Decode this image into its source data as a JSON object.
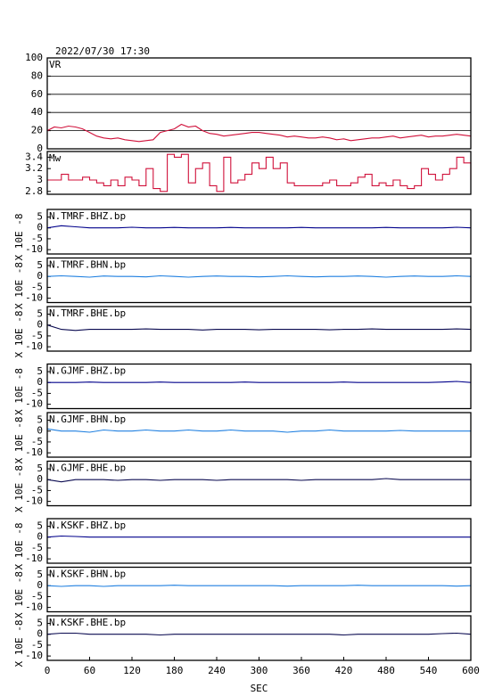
{
  "chart_data": [
    {
      "type": "line",
      "title": "2022/07/30 17:30",
      "label": "VR",
      "color": "#d0103a",
      "grid": true,
      "xlim": [
        0,
        600
      ],
      "ylim": [
        0,
        100
      ],
      "yticks": [
        0,
        20,
        40,
        60,
        80,
        100
      ],
      "x": [
        0,
        10,
        20,
        30,
        40,
        50,
        60,
        70,
        80,
        90,
        100,
        110,
        120,
        130,
        140,
        150,
        160,
        170,
        180,
        190,
        200,
        210,
        220,
        230,
        240,
        250,
        260,
        270,
        280,
        290,
        300,
        310,
        320,
        330,
        340,
        350,
        360,
        370,
        380,
        390,
        400,
        410,
        420,
        430,
        440,
        450,
        460,
        470,
        480,
        490,
        500,
        510,
        520,
        530,
        540,
        550,
        560,
        570,
        580,
        590,
        600
      ],
      "values": [
        20,
        24,
        23,
        25,
        24,
        22,
        18,
        14,
        12,
        11,
        12,
        10,
        9,
        8,
        9,
        10,
        18,
        20,
        22,
        27,
        24,
        25,
        20,
        17,
        16,
        14,
        15,
        16,
        17,
        18,
        18,
        17,
        16,
        15,
        13,
        14,
        13,
        12,
        12,
        13,
        12,
        10,
        11,
        9,
        10,
        11,
        12,
        12,
        13,
        14,
        12,
        13,
        14,
        15,
        13,
        14,
        14,
        15,
        16,
        15,
        14
      ]
    },
    {
      "type": "step",
      "label": "Mw",
      "color": "#d0103a",
      "xlim": [
        0,
        600
      ],
      "ylim": [
        2.75,
        3.5
      ],
      "yticks": [
        2.8,
        3.0,
        3.2,
        3.4
      ],
      "x": [
        0,
        10,
        20,
        30,
        40,
        50,
        60,
        70,
        80,
        90,
        100,
        110,
        120,
        130,
        140,
        150,
        160,
        170,
        180,
        190,
        200,
        210,
        220,
        230,
        240,
        250,
        260,
        270,
        280,
        290,
        300,
        310,
        320,
        330,
        340,
        350,
        360,
        370,
        380,
        390,
        400,
        410,
        420,
        430,
        440,
        450,
        460,
        470,
        480,
        490,
        500,
        510,
        520,
        530,
        540,
        550,
        560,
        570,
        580,
        590,
        600
      ],
      "values": [
        3.0,
        3.0,
        3.1,
        3.0,
        3.0,
        3.05,
        3.0,
        2.95,
        2.9,
        3.0,
        2.9,
        3.05,
        3.0,
        2.9,
        3.2,
        2.85,
        2.8,
        3.45,
        3.4,
        3.45,
        2.95,
        3.2,
        3.3,
        2.9,
        2.8,
        3.4,
        2.95,
        3.0,
        3.1,
        3.3,
        3.2,
        3.4,
        3.2,
        3.3,
        2.95,
        2.9,
        2.9,
        2.9,
        2.9,
        2.95,
        3.0,
        2.9,
        2.9,
        2.95,
        3.05,
        3.1,
        2.9,
        2.95,
        2.9,
        3.0,
        2.9,
        2.85,
        2.9,
        3.2,
        3.1,
        3.0,
        3.1,
        3.2,
        3.4,
        3.3,
        3.0
      ]
    },
    {
      "type": "line",
      "label": "N.TMRF.BHZ.bp",
      "ylabel": "X 10E -8",
      "color": "#00008b",
      "xlim": [
        0,
        600
      ],
      "ylim": [
        -12,
        8.5
      ],
      "yticks": [
        -10,
        -5,
        0,
        5
      ],
      "x": [
        0,
        20,
        40,
        60,
        80,
        100,
        120,
        140,
        160,
        180,
        200,
        220,
        240,
        260,
        280,
        300,
        320,
        340,
        360,
        380,
        400,
        420,
        440,
        460,
        480,
        500,
        520,
        540,
        560,
        580,
        600
      ],
      "values": [
        0,
        1,
        0.5,
        0,
        0,
        0,
        0.3,
        0,
        0,
        0.2,
        0,
        0,
        0,
        0.2,
        0,
        0,
        0,
        0,
        0.2,
        0,
        0,
        0,
        0,
        0,
        0.2,
        0,
        0,
        0,
        0,
        0.3,
        0
      ]
    },
    {
      "type": "line",
      "label": "N.TMRF.BHN.bp",
      "ylabel": "X 10E -8",
      "color": "#1e7fe0",
      "xlim": [
        0,
        600
      ],
      "ylim": [
        -12,
        8.5
      ],
      "yticks": [
        -10,
        -5,
        0,
        5
      ],
      "x": [
        0,
        20,
        40,
        60,
        80,
        100,
        120,
        140,
        160,
        180,
        200,
        220,
        240,
        260,
        280,
        300,
        320,
        340,
        360,
        380,
        400,
        420,
        440,
        460,
        480,
        500,
        520,
        540,
        560,
        580,
        600
      ],
      "values": [
        0,
        0.3,
        0,
        -0.3,
        0.2,
        0,
        0,
        -0.2,
        0.3,
        0,
        -0.3,
        0,
        0.2,
        0,
        0,
        -0.2,
        0,
        0.3,
        0,
        -0.2,
        0,
        0,
        0.2,
        0,
        -0.3,
        0,
        0.2,
        0,
        0,
        0.3,
        0
      ]
    },
    {
      "type": "line",
      "label": "N.TMRF.BHE.bp",
      "ylabel": "X 10E -8",
      "color": "#0a0a50",
      "xlim": [
        0,
        600
      ],
      "ylim": [
        -12,
        8.5
      ],
      "yticks": [
        -10,
        -5,
        0,
        5
      ],
      "x": [
        0,
        20,
        40,
        60,
        80,
        100,
        120,
        140,
        160,
        180,
        200,
        220,
        240,
        260,
        280,
        300,
        320,
        340,
        360,
        380,
        400,
        420,
        440,
        460,
        480,
        500,
        520,
        540,
        560,
        580,
        600
      ],
      "values": [
        0,
        -2,
        -2.5,
        -2,
        -2,
        -2,
        -2,
        -1.8,
        -2,
        -2,
        -2,
        -2.3,
        -2,
        -2,
        -2,
        -2.2,
        -2,
        -2,
        -2,
        -2,
        -2.2,
        -2,
        -2,
        -1.8,
        -2,
        -2,
        -2,
        -2,
        -2,
        -1.8,
        -2
      ]
    },
    {
      "type": "line",
      "label": "N.GJMF.BHZ.bp",
      "ylabel": "X 10E -8",
      "color": "#00008b",
      "xlim": [
        0,
        600
      ],
      "ylim": [
        -12,
        8.5
      ],
      "yticks": [
        -10,
        -5,
        0,
        5
      ],
      "x": [
        0,
        20,
        40,
        60,
        80,
        100,
        120,
        140,
        160,
        180,
        200,
        220,
        240,
        260,
        280,
        300,
        320,
        340,
        360,
        380,
        400,
        420,
        440,
        460,
        480,
        500,
        520,
        540,
        560,
        580,
        600
      ],
      "values": [
        0,
        0,
        0,
        0.2,
        0,
        0,
        0,
        0,
        0.2,
        0,
        0,
        0,
        0,
        0,
        0.2,
        0,
        0,
        0,
        0,
        0,
        0,
        0.2,
        0,
        0,
        0,
        0,
        0,
        0,
        0.2,
        0.5,
        0
      ]
    },
    {
      "type": "line",
      "label": "N.GJMF.BHN.bp",
      "ylabel": "X 10E -8",
      "color": "#1e7fe0",
      "xlim": [
        0,
        600
      ],
      "ylim": [
        -12,
        8.5
      ],
      "yticks": [
        -10,
        -5,
        0,
        5
      ],
      "x": [
        0,
        20,
        40,
        60,
        80,
        100,
        120,
        140,
        160,
        180,
        200,
        220,
        240,
        260,
        280,
        300,
        320,
        340,
        360,
        380,
        400,
        420,
        440,
        460,
        480,
        500,
        520,
        540,
        560,
        580,
        600
      ],
      "values": [
        1,
        0,
        0,
        -0.5,
        0.5,
        0,
        0,
        0.5,
        0,
        0,
        0.5,
        0,
        0,
        0.5,
        0,
        0,
        0,
        -0.5,
        0,
        0,
        0.5,
        0,
        0,
        0,
        0,
        0.3,
        0,
        0,
        0,
        0,
        0
      ]
    },
    {
      "type": "line",
      "label": "N.GJMF.BHE.bp",
      "ylabel": "X 10E -8",
      "color": "#0a0a50",
      "xlim": [
        0,
        600
      ],
      "ylim": [
        -12,
        8.5
      ],
      "yticks": [
        -10,
        -5,
        0,
        5
      ],
      "x": [
        0,
        20,
        40,
        60,
        80,
        100,
        120,
        140,
        160,
        180,
        200,
        220,
        240,
        260,
        280,
        300,
        320,
        340,
        360,
        380,
        400,
        420,
        440,
        460,
        480,
        500,
        520,
        540,
        560,
        580,
        600
      ],
      "values": [
        0,
        -1,
        0,
        0,
        0,
        -0.3,
        0,
        0,
        -0.3,
        0,
        0,
        0,
        -0.3,
        0,
        0,
        0,
        0,
        0,
        -0.3,
        0,
        0,
        0,
        0,
        0,
        0.5,
        0,
        0,
        0,
        0,
        0,
        0
      ]
    },
    {
      "type": "line",
      "label": "N.KSKF.BHZ.bp",
      "ylabel": "X 10E -8",
      "color": "#00008b",
      "xlim": [
        0,
        600
      ],
      "ylim": [
        -12,
        8.5
      ],
      "yticks": [
        -10,
        -5,
        0,
        5
      ],
      "x": [
        0,
        20,
        40,
        60,
        80,
        100,
        120,
        140,
        160,
        180,
        200,
        220,
        240,
        260,
        280,
        300,
        320,
        340,
        360,
        380,
        400,
        420,
        440,
        460,
        480,
        500,
        520,
        540,
        560,
        580,
        600
      ],
      "values": [
        0,
        0.5,
        0.3,
        0,
        0,
        0,
        0,
        0,
        0,
        0,
        0,
        0,
        0,
        0,
        0,
        0,
        0,
        0,
        0,
        0,
        0,
        0,
        0,
        0,
        0,
        0,
        0,
        0,
        0,
        0,
        0
      ]
    },
    {
      "type": "line",
      "label": "N.KSKF.BHN.bp",
      "ylabel": "X 10E -8",
      "color": "#1e7fe0",
      "xlim": [
        0,
        600
      ],
      "ylim": [
        -12,
        8.5
      ],
      "yticks": [
        -10,
        -5,
        0,
        5
      ],
      "x": [
        0,
        20,
        40,
        60,
        80,
        100,
        120,
        140,
        160,
        180,
        200,
        220,
        240,
        260,
        280,
        300,
        320,
        340,
        360,
        380,
        400,
        420,
        440,
        460,
        480,
        500,
        520,
        540,
        560,
        580,
        600
      ],
      "values": [
        0,
        -0.3,
        0,
        0,
        -0.3,
        0,
        0,
        0,
        0,
        0.2,
        0,
        0,
        0,
        0,
        0,
        0,
        0,
        -0.2,
        0,
        0,
        0,
        0,
        0.2,
        0,
        0,
        0,
        0,
        0,
        0,
        -0.2,
        0
      ]
    },
    {
      "type": "line",
      "label": "N.KSKF.BHE.bp",
      "ylabel": "X 10E -8",
      "color": "#0a0a50",
      "xlim": [
        0,
        600
      ],
      "ylim": [
        -12,
        8.5
      ],
      "yticks": [
        -10,
        -5,
        0,
        5
      ],
      "xlabel": "SEC",
      "xticks": [
        0,
        60,
        120,
        180,
        240,
        300,
        360,
        420,
        480,
        540,
        600
      ],
      "x": [
        0,
        20,
        40,
        60,
        80,
        100,
        120,
        140,
        160,
        180,
        200,
        220,
        240,
        260,
        280,
        300,
        320,
        340,
        360,
        380,
        400,
        420,
        440,
        460,
        480,
        500,
        520,
        540,
        560,
        580,
        600
      ],
      "values": [
        0,
        0.5,
        0.5,
        0,
        0,
        0,
        0,
        0,
        -0.3,
        0,
        0,
        0,
        0,
        0,
        0,
        0,
        0,
        0,
        0,
        0,
        0,
        -0.3,
        0,
        0,
        0,
        0,
        0,
        0,
        0.3,
        0.5,
        0
      ]
    }
  ]
}
